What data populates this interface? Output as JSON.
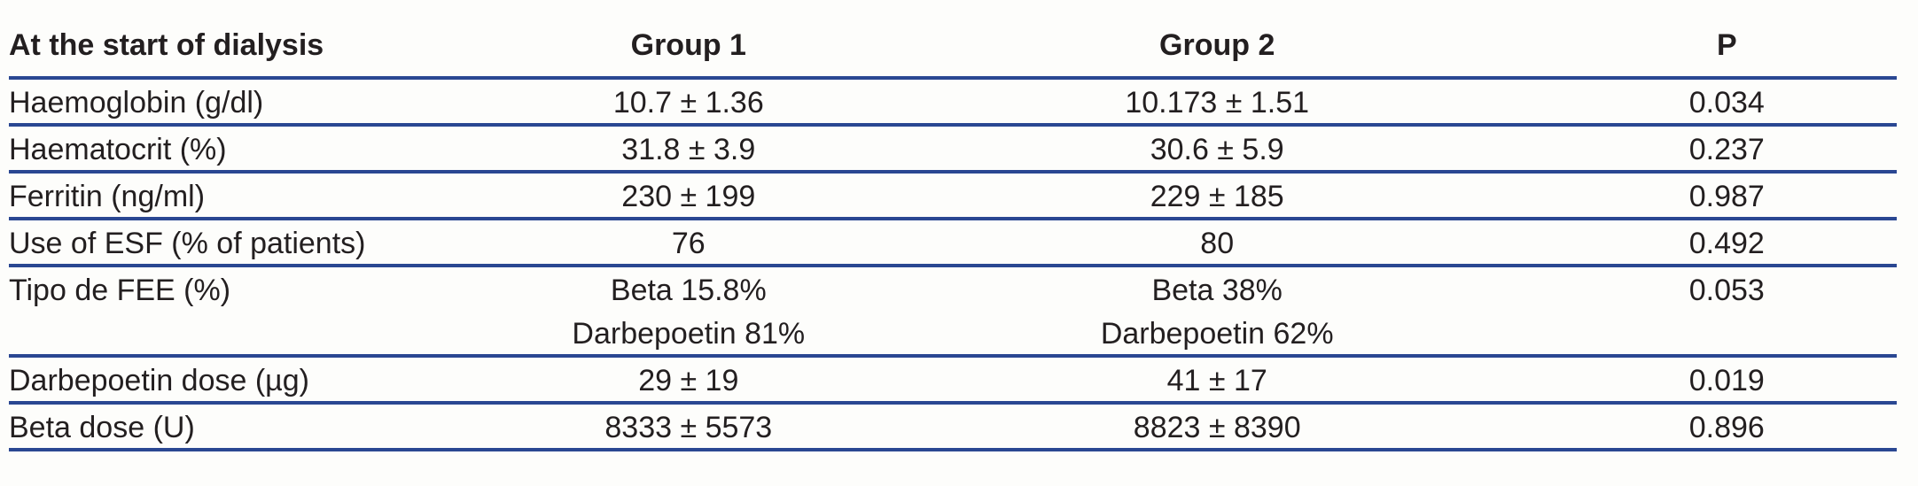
{
  "table": {
    "colors": {
      "rule": "#2a4792",
      "text": "#231f20",
      "background": "#fdfdfb"
    },
    "header": {
      "parameter": "At the start of dialysis",
      "group1": "Group 1",
      "group2": "Group 2",
      "p": "P"
    },
    "rows": [
      {
        "label": "Haemoglobin (g/dl)",
        "group1": "10.7 ± 1.36",
        "group2": "10.173 ± 1.51",
        "p": "0.034"
      },
      {
        "label": "Haematocrit (%)",
        "group1": "31.8 ± 3.9",
        "group2": "30.6 ± 5.9",
        "p": "0.237"
      },
      {
        "label": "Ferritin (ng/ml)",
        "group1": "230 ± 199",
        "group2": "229 ± 185",
        "p": "0.987"
      },
      {
        "label": "Use of ESF (% of patients)",
        "group1": "76",
        "group2": "80",
        "p": "0.492"
      },
      {
        "label": "Tipo de FEE (%)",
        "group1": "Beta 15.8%",
        "group2": "Beta 38%",
        "p": "0.053"
      },
      {
        "label": "",
        "group1": "Darbepoetin 81%",
        "group2": "Darbepoetin 62%",
        "p": ""
      },
      {
        "label": "Darbepoetin dose (µg)",
        "group1": "29 ± 19",
        "group2": "41 ± 17",
        "p": "0.019"
      },
      {
        "label": "Beta dose (U)",
        "group1": "8333 ± 5573",
        "group2": "8823 ± 8390",
        "p": "0.896"
      }
    ]
  }
}
